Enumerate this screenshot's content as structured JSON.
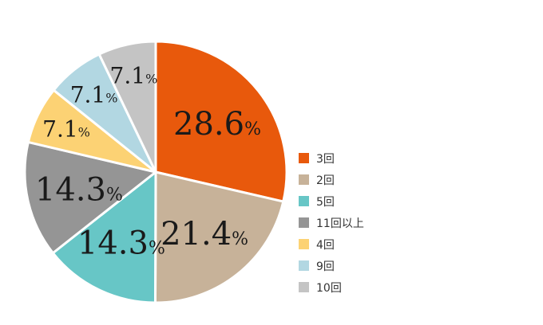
{
  "chart_data": {
    "type": "pie",
    "slices": [
      {
        "label": "3回",
        "value": 28.6,
        "display": "28.6",
        "color": "#e8590c"
      },
      {
        "label": "2回",
        "value": 21.4,
        "display": "21.4",
        "color": "#c7b299"
      },
      {
        "label": "5回",
        "value": 14.3,
        "display": "14.3",
        "color": "#67c6c6"
      },
      {
        "label": "11回以上",
        "value": 14.3,
        "display": "14.3",
        "color": "#959595"
      },
      {
        "label": "4回",
        "value": 7.1,
        "display": "7.1",
        "color": "#fcd274"
      },
      {
        "label": "9回",
        "value": 7.1,
        "display": "7.1",
        "color": "#b2d7e2"
      },
      {
        "label": "10回",
        "value": 7.1,
        "display": "7.1",
        "color": "#c4c4c4"
      }
    ],
    "unit": "%",
    "legend_position": "right"
  }
}
